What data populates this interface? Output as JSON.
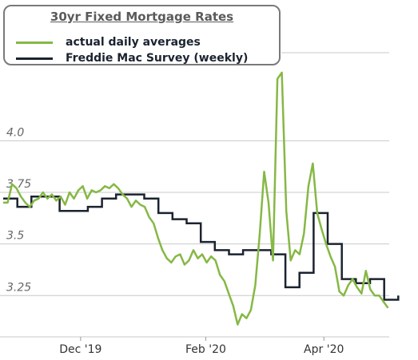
{
  "chart_data": {
    "type": "line",
    "title": "30yr Fixed Mortgage Rates",
    "xlabel": "",
    "ylabel": "",
    "ylim": [
      3.05,
      4.45
    ],
    "yticks": [
      "3.25",
      "3.5",
      "3.75",
      "4.0"
    ],
    "xticks": [
      "Dec '19",
      "Feb '20",
      "Apr '20"
    ],
    "legend": "top-left",
    "grid": true,
    "series": [
      {
        "name": "actual daily averages",
        "color": "#86b845",
        "values": [
          3.7,
          3.7,
          3.79,
          3.77,
          3.73,
          3.7,
          3.68,
          3.71,
          3.72,
          3.75,
          3.72,
          3.74,
          3.71,
          3.73,
          3.69,
          3.75,
          3.72,
          3.76,
          3.78,
          3.72,
          3.76,
          3.75,
          3.76,
          3.78,
          3.77,
          3.79,
          3.77,
          3.74,
          3.72,
          3.68,
          3.71,
          3.69,
          3.68,
          3.63,
          3.6,
          3.53,
          3.47,
          3.43,
          3.41,
          3.44,
          3.45,
          3.4,
          3.42,
          3.47,
          3.43,
          3.45,
          3.41,
          3.44,
          3.42,
          3.35,
          3.32,
          3.26,
          3.2,
          3.11,
          3.16,
          3.14,
          3.18,
          3.3,
          3.55,
          3.85,
          3.7,
          3.42,
          4.3,
          4.33,
          3.66,
          3.42,
          3.47,
          3.45,
          3.55,
          3.78,
          3.89,
          3.65,
          3.57,
          3.5,
          3.44,
          3.39,
          3.27,
          3.25,
          3.3,
          3.33,
          3.29,
          3.26,
          3.37,
          3.28,
          3.25,
          3.25,
          3.22,
          3.19
        ],
        "x_start": 0,
        "x_end": 87
      },
      {
        "name": "Freddie Mac Survey (weekly)",
        "color": "#1b2330",
        "steps": [
          3.72,
          3.68,
          3.73,
          3.73,
          3.66,
          3.66,
          3.68,
          3.72,
          3.74,
          3.74,
          3.72,
          3.65,
          3.62,
          3.6,
          3.51,
          3.47,
          3.45,
          3.47,
          3.47,
          3.45,
          3.29,
          3.36,
          3.65,
          3.5,
          3.33,
          3.31,
          3.33,
          3.23
        ],
        "step_width": 3.19
      }
    ]
  }
}
